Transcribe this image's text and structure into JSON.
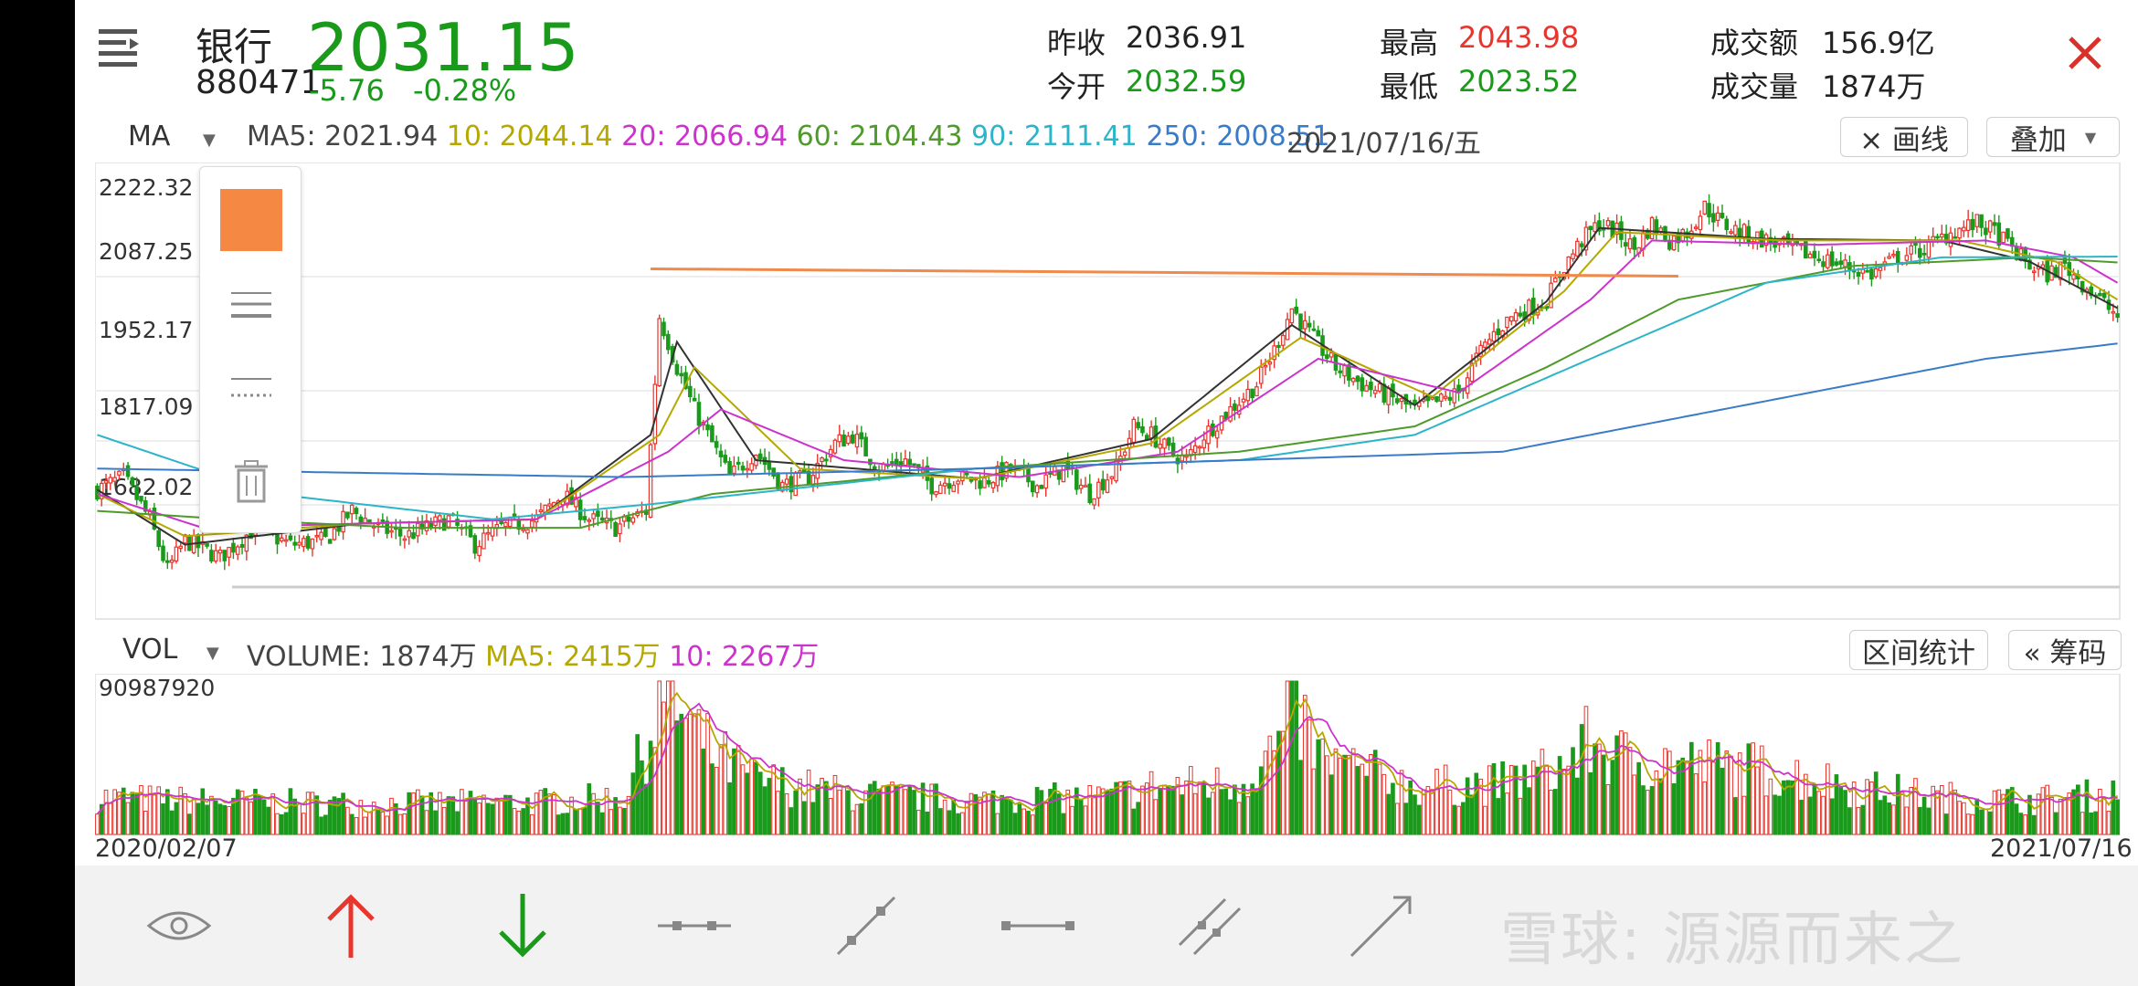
{
  "header": {
    "stock_name": "银行",
    "stock_code": "880471",
    "price": "2031.15",
    "change": "-5.76",
    "change_pct": "-0.28%",
    "prev_close_label": "昨收",
    "prev_close": "2036.91",
    "open_label": "今开",
    "open": "2032.59",
    "high_label": "最高",
    "high": "2043.98",
    "low_label": "最低",
    "low": "2023.52",
    "turnover_label": "成交额",
    "turnover": "156.9亿",
    "volume_label": "成交量",
    "volume": "1874万",
    "menu_icon": "menu-icon",
    "close_icon": "close-icon"
  },
  "ma_bar": {
    "selector": "MA",
    "ma5": "MA5: 2021.94",
    "ma10": "10: 2044.14",
    "ma20": "20: 2066.94",
    "ma60": "60: 2104.43",
    "ma90": "90: 2111.41",
    "ma250": "250: 2008.51",
    "date": "2021/07/16/五",
    "draw_line_btn": "× 画线",
    "overlay_btn": "叠加"
  },
  "vol_bar": {
    "selector": "VOL",
    "volume": "VOLUME: 1874万",
    "ma5": "MA5: 2415万",
    "ma10": "10: 2267万",
    "range_stats_btn": "区间统计",
    "chips_btn": "« 筹码"
  },
  "watermark": "雪球: 源源而来之",
  "colors": {
    "up": "#e8352d",
    "down": "#1a9a1a",
    "price_green": "#1a9a1a",
    "ma5": "#333333",
    "ma10": "#b5a800",
    "ma20": "#cc33cc",
    "ma60": "#4e9a2a",
    "ma90": "#2cb5c8",
    "ma250": "#3a7bc8",
    "drawn_line": "#f08a4b"
  },
  "chart_data": [
    {
      "type": "candlestick",
      "title": "",
      "y_ticks": [
        "2222.32",
        "2087.25",
        "1952.17",
        "1817.09",
        "1682.02"
      ],
      "ylim": [
        1682.02,
        2222.32
      ],
      "x_start": "2020/02/07",
      "x_end": "2021/07/16",
      "trend_points": [
        [
          0,
          1835
        ],
        [
          6,
          1850
        ],
        [
          12,
          1800
        ],
        [
          16,
          1740
        ],
        [
          20,
          1775
        ],
        [
          28,
          1755
        ],
        [
          36,
          1790
        ],
        [
          44,
          1770
        ],
        [
          52,
          1775
        ],
        [
          58,
          1810
        ],
        [
          64,
          1790
        ],
        [
          70,
          1780
        ],
        [
          80,
          1800
        ],
        [
          86,
          1770
        ],
        [
          92,
          1790
        ],
        [
          100,
          1800
        ],
        [
          106,
          1830
        ],
        [
          112,
          1800
        ],
        [
          118,
          1790
        ],
        [
          125,
          1810
        ],
        [
          128,
          2040
        ],
        [
          132,
          1980
        ],
        [
          136,
          1930
        ],
        [
          140,
          1890
        ],
        [
          144,
          1850
        ],
        [
          150,
          1880
        ],
        [
          156,
          1840
        ],
        [
          162,
          1850
        ],
        [
          168,
          1890
        ],
        [
          172,
          1900
        ],
        [
          178,
          1860
        ],
        [
          184,
          1870
        ],
        [
          190,
          1840
        ],
        [
          196,
          1850
        ],
        [
          202,
          1845
        ],
        [
          208,
          1860
        ],
        [
          214,
          1840
        ],
        [
          220,
          1860
        ],
        [
          226,
          1830
        ],
        [
          232,
          1860
        ],
        [
          236,
          1910
        ],
        [
          240,
          1900
        ],
        [
          244,
          1880
        ],
        [
          248,
          1870
        ],
        [
          252,
          1900
        ],
        [
          258,
          1930
        ],
        [
          264,
          1960
        ],
        [
          268,
          2000
        ],
        [
          272,
          2050
        ],
        [
          276,
          2020
        ],
        [
          282,
          1980
        ],
        [
          288,
          1960
        ],
        [
          294,
          1945
        ],
        [
          300,
          1930
        ],
        [
          306,
          1940
        ],
        [
          310,
          1950
        ],
        [
          314,
          1990
        ],
        [
          318,
          2020
        ],
        [
          322,
          2040
        ],
        [
          326,
          2050
        ],
        [
          330,
          2060
        ],
        [
          334,
          2100
        ],
        [
          338,
          2130
        ],
        [
          342,
          2150
        ],
        [
          346,
          2140
        ],
        [
          350,
          2120
        ],
        [
          354,
          2150
        ],
        [
          358,
          2130
        ],
        [
          362,
          2140
        ],
        [
          366,
          2170
        ],
        [
          370,
          2150
        ],
        [
          374,
          2140
        ],
        [
          380,
          2130
        ],
        [
          386,
          2120
        ],
        [
          392,
          2110
        ],
        [
          398,
          2100
        ],
        [
          404,
          2090
        ],
        [
          410,
          2110
        ],
        [
          416,
          2120
        ],
        [
          422,
          2140
        ],
        [
          428,
          2150
        ],
        [
          432,
          2140
        ],
        [
          436,
          2120
        ],
        [
          440,
          2100
        ],
        [
          444,
          2090
        ],
        [
          448,
          2100
        ],
        [
          452,
          2080
        ],
        [
          456,
          2060
        ],
        [
          460,
          2040
        ]
      ],
      "ma_series": [
        {
          "name": "MA5",
          "points": [
            [
              0,
              1835
            ],
            [
              20,
              1770
            ],
            [
              60,
              1795
            ],
            [
              100,
              1800
            ],
            [
              126,
              1900
            ],
            [
              132,
              2010
            ],
            [
              150,
              1870
            ],
            [
              200,
              1848
            ],
            [
              240,
              1895
            ],
            [
              272,
              2030
            ],
            [
              300,
              1935
            ],
            [
              330,
              2058
            ],
            [
              342,
              2145
            ],
            [
              380,
              2132
            ],
            [
              420,
              2130
            ],
            [
              440,
              2105
            ],
            [
              460,
              2050
            ]
          ]
        },
        {
          "name": "10",
          "points": [
            [
              0,
              1830
            ],
            [
              20,
              1780
            ],
            [
              60,
              1795
            ],
            [
              100,
              1800
            ],
            [
              128,
              1900
            ],
            [
              136,
              1980
            ],
            [
              160,
              1860
            ],
            [
              200,
              1848
            ],
            [
              240,
              1890
            ],
            [
              274,
              2015
            ],
            [
              304,
              1945
            ],
            [
              334,
              2070
            ],
            [
              346,
              2140
            ],
            [
              384,
              2130
            ],
            [
              424,
              2130
            ],
            [
              446,
              2105
            ],
            [
              460,
              2060
            ]
          ]
        },
        {
          "name": "20",
          "points": [
            [
              0,
              1830
            ],
            [
              24,
              1790
            ],
            [
              60,
              1795
            ],
            [
              100,
              1800
            ],
            [
              130,
              1880
            ],
            [
              142,
              1930
            ],
            [
              170,
              1870
            ],
            [
              210,
              1850
            ],
            [
              246,
              1880
            ],
            [
              278,
              1990
            ],
            [
              310,
              1950
            ],
            [
              340,
              2060
            ],
            [
              354,
              2130
            ],
            [
              392,
              2125
            ],
            [
              430,
              2130
            ],
            [
              450,
              2110
            ],
            [
              460,
              2080
            ]
          ]
        },
        {
          "name": "60",
          "points": [
            [
              0,
              1810
            ],
            [
              30,
              1800
            ],
            [
              70,
              1790
            ],
            [
              110,
              1790
            ],
            [
              140,
              1830
            ],
            [
              200,
              1860
            ],
            [
              260,
              1880
            ],
            [
              300,
              1910
            ],
            [
              330,
              1980
            ],
            [
              360,
              2060
            ],
            [
              400,
              2100
            ],
            [
              440,
              2110
            ],
            [
              460,
              2104
            ]
          ]
        },
        {
          "name": "90",
          "points": [
            [
              0,
              1900
            ],
            [
              40,
              1830
            ],
            [
              90,
              1800
            ],
            [
              130,
              1820
            ],
            [
              200,
              1860
            ],
            [
              260,
              1870
            ],
            [
              300,
              1900
            ],
            [
              340,
              1990
            ],
            [
              380,
              2080
            ],
            [
              420,
              2110
            ],
            [
              460,
              2111
            ]
          ]
        },
        {
          "name": "250",
          "points": [
            [
              0,
              1860
            ],
            [
              60,
              1855
            ],
            [
              120,
              1850
            ],
            [
              200,
              1860
            ],
            [
              260,
              1870
            ],
            [
              320,
              1880
            ],
            [
              380,
              1940
            ],
            [
              430,
              1990
            ],
            [
              460,
              2008
            ]
          ]
        }
      ],
      "horizontal_line": {
        "y": 2090,
        "from_index": 126,
        "to_index": 360
      }
    },
    {
      "type": "bar",
      "title": "",
      "y_ticks": [
        "90987920"
      ],
      "ylim": [
        0,
        90987920
      ],
      "volume_profile": [
        [
          0,
          22000000
        ],
        [
          20,
          20000000
        ],
        [
          60,
          18000000
        ],
        [
          100,
          19000000
        ],
        [
          120,
          22000000
        ],
        [
          126,
          60000000
        ],
        [
          130,
          90987920
        ],
        [
          134,
          65000000
        ],
        [
          140,
          48000000
        ],
        [
          150,
          32000000
        ],
        [
          170,
          24000000
        ],
        [
          200,
          20000000
        ],
        [
          230,
          22000000
        ],
        [
          240,
          28000000
        ],
        [
          260,
          30000000
        ],
        [
          270,
          55000000
        ],
        [
          272,
          80000000
        ],
        [
          278,
          45000000
        ],
        [
          300,
          28000000
        ],
        [
          320,
          30000000
        ],
        [
          334,
          40000000
        ],
        [
          340,
          55000000
        ],
        [
          346,
          45000000
        ],
        [
          360,
          42000000
        ],
        [
          380,
          38000000
        ],
        [
          400,
          28000000
        ],
        [
          420,
          22000000
        ],
        [
          440,
          20000000
        ],
        [
          460,
          24000000
        ]
      ]
    }
  ]
}
